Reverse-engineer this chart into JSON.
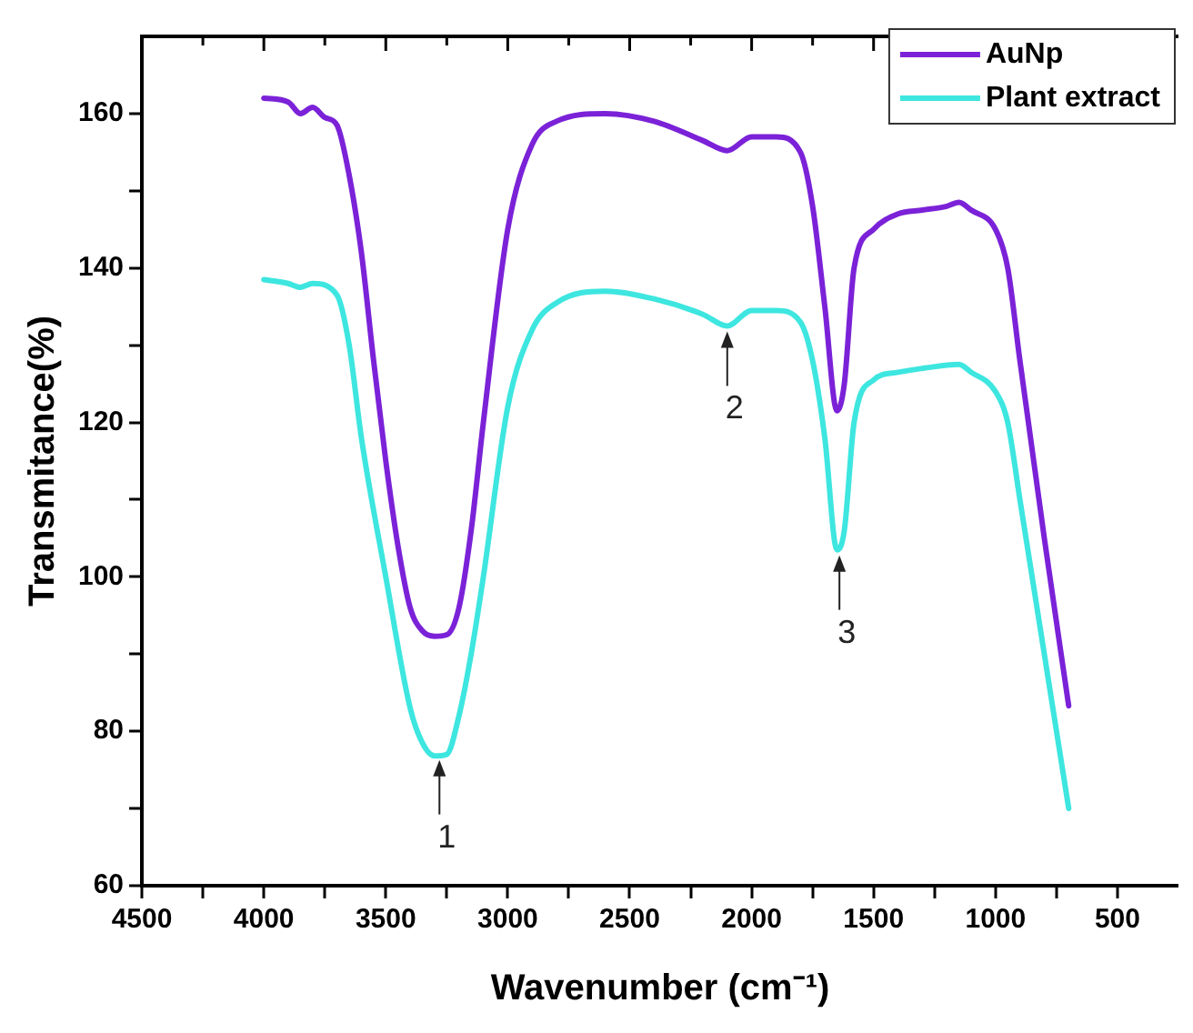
{
  "chart_data": {
    "type": "line",
    "xlabel": "Wavenumber (cm⁻¹)",
    "ylabel": "Transmitance(%)",
    "xlim": [
      4500,
      250
    ],
    "ylim": [
      60,
      170
    ],
    "xticks": [
      4500,
      {
        "value": 4250,
        "label": null
      },
      4000,
      {
        "value": 3750,
        "label": null
      },
      3500,
      {
        "value": 3250,
        "label": null
      },
      3000,
      {
        "value": 2750,
        "label": null
      },
      2500,
      {
        "value": 2250,
        "label": null
      },
      2000,
      {
        "value": 1750,
        "label": null
      },
      1500,
      {
        "value": 1250,
        "label": null
      },
      1000,
      {
        "value": 750,
        "label": null
      },
      500
    ],
    "yticks": [
      60,
      {
        "value": 70,
        "label": null
      },
      80,
      {
        "value": 90,
        "label": null
      },
      100,
      {
        "value": 110,
        "label": null
      },
      120,
      {
        "value": 130,
        "label": null
      },
      140,
      {
        "value": 150,
        "label": null
      },
      160
    ],
    "grid": false,
    "legend": "top right",
    "marker": "none",
    "line_style": "solid",
    "series": [
      {
        "name": "AuNp",
        "color": "#7b22d8",
        "x": [
          4000,
          3900,
          3850,
          3800,
          3750,
          3700,
          3650,
          3600,
          3550,
          3500,
          3450,
          3400,
          3350,
          3300,
          3250,
          3200,
          3150,
          3100,
          3000,
          2900,
          2800,
          2600,
          2400,
          2200,
          2100,
          2000,
          1900,
          1800,
          1750,
          1700,
          1650,
          1620,
          1580,
          1500,
          1400,
          1300,
          1200,
          1150,
          1100,
          1000,
          950,
          900,
          800,
          700
        ],
        "values": [
          162,
          161.5,
          160,
          160.8,
          159.5,
          158.5,
          152,
          142,
          128,
          115,
          104,
          96,
          93,
          92.3,
          92.5,
          96,
          106,
          120,
          145,
          156,
          159,
          160,
          159,
          156.5,
          155.2,
          157,
          157,
          155,
          148,
          135,
          121.5,
          125,
          140,
          145,
          147,
          147.5,
          148,
          148.5,
          147.5,
          145,
          140,
          128,
          105,
          83.3
        ]
      },
      {
        "name": "Plant extract",
        "color": "#3ee6e0",
        "x": [
          4000,
          3900,
          3850,
          3800,
          3700,
          3650,
          3600,
          3500,
          3400,
          3350,
          3300,
          3250,
          3200,
          3150,
          3100,
          3000,
          2900,
          2800,
          2600,
          2400,
          2200,
          2100,
          2000,
          1900,
          1800,
          1750,
          1700,
          1650,
          1620,
          1580,
          1500,
          1400,
          1300,
          1150,
          1100,
          1000,
          950,
          900,
          800,
          700
        ],
        "values": [
          138.5,
          138,
          137.5,
          138,
          136.5,
          130,
          118,
          100,
          83,
          78.5,
          76.8,
          77,
          82,
          90,
          100,
          122,
          132,
          135.5,
          137,
          136,
          134,
          132.5,
          134.5,
          134.5,
          133,
          128,
          118,
          103.5,
          106,
          120,
          125.5,
          126.5,
          127,
          127.5,
          126.5,
          124,
          120,
          110,
          90,
          70
        ]
      }
    ],
    "annotations": [
      {
        "text": "1",
        "x": 3280,
        "y": 77
      },
      {
        "text": "2",
        "x": 2100,
        "y": 132.5
      },
      {
        "text": "3",
        "x": 1640,
        "y": 103.5
      }
    ]
  }
}
